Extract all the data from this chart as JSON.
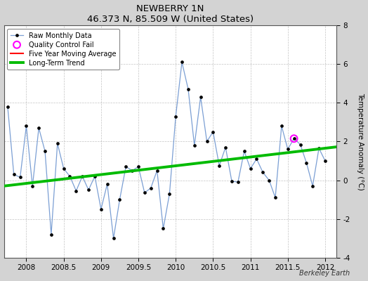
{
  "title": "NEWBERRY 1N",
  "subtitle": "46.373 N, 85.509 W (United States)",
  "ylabel": "Temperature Anomaly (°C)",
  "watermark": "Berkeley Earth",
  "xlim": [
    2007.7,
    2012.15
  ],
  "ylim": [
    -4,
    8
  ],
  "yticks": [
    -4,
    -2,
    0,
    2,
    4,
    6,
    8
  ],
  "xticks": [
    2008,
    2008.5,
    2009,
    2009.5,
    2010,
    2010.5,
    2011,
    2011.5,
    2012
  ],
  "xtick_labels": [
    "2008",
    "2008.5",
    "2009",
    "2009.5",
    "2010",
    "2010.5",
    "2011",
    "2011.5",
    "2012"
  ],
  "fig_bg_color": "#d3d3d3",
  "plot_bg_color": "#ffffff",
  "raw_x": [
    2007.75,
    2007.833,
    2007.917,
    2008.0,
    2008.083,
    2008.167,
    2008.25,
    2008.333,
    2008.417,
    2008.5,
    2008.583,
    2008.667,
    2008.75,
    2008.833,
    2008.917,
    2009.0,
    2009.083,
    2009.167,
    2009.25,
    2009.333,
    2009.417,
    2009.5,
    2009.583,
    2009.667,
    2009.75,
    2009.833,
    2009.917,
    2010.0,
    2010.083,
    2010.167,
    2010.25,
    2010.333,
    2010.417,
    2010.5,
    2010.583,
    2010.667,
    2010.75,
    2010.833,
    2010.917,
    2011.0,
    2011.083,
    2011.167,
    2011.25,
    2011.333,
    2011.417,
    2011.5,
    2011.583,
    2011.667,
    2011.75,
    2011.833,
    2011.917,
    2012.0
  ],
  "raw_y": [
    3.8,
    0.3,
    0.15,
    2.8,
    -0.3,
    2.7,
    1.5,
    -2.8,
    1.9,
    0.6,
    0.2,
    -0.55,
    0.2,
    -0.5,
    0.2,
    -1.5,
    -0.2,
    -3.0,
    -1.0,
    0.7,
    0.5,
    0.7,
    -0.65,
    -0.4,
    0.5,
    -2.5,
    -0.7,
    3.3,
    6.1,
    4.7,
    1.8,
    4.3,
    2.0,
    2.5,
    0.75,
    1.7,
    -0.05,
    -0.1,
    1.5,
    0.6,
    1.1,
    0.4,
    0.0,
    -0.9,
    2.8,
    1.6,
    2.15,
    1.85,
    0.9,
    -0.3,
    1.65,
    1.0
  ],
  "qc_fail_x": [
    2011.583
  ],
  "qc_fail_y": [
    2.15
  ],
  "trend_x": [
    2007.7,
    2012.15
  ],
  "trend_y": [
    -0.3,
    1.72
  ],
  "raw_line_color": "#7b9fd4",
  "raw_marker_color": "#000000",
  "trend_color": "#00bb00",
  "ma_color": "#ff0000",
  "qc_color": "#ff00ff",
  "grid_color": "#aaaaaa",
  "legend_loc": "upper left"
}
